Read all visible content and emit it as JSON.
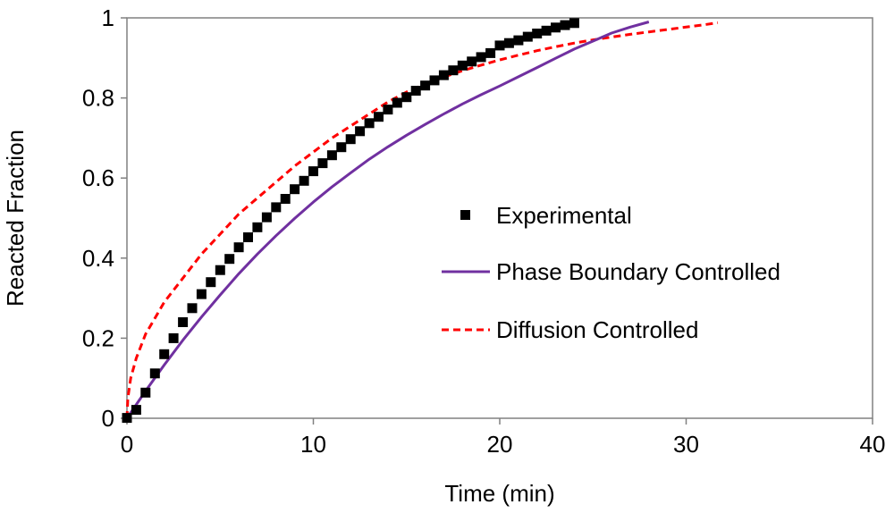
{
  "chart_data": {
    "type": "scatter",
    "title": "",
    "xlabel": "Time (min)",
    "ylabel": "Reacted  Fraction",
    "xlim": [
      0,
      40
    ],
    "ylim": [
      0,
      1
    ],
    "x_ticks": [
      0,
      10,
      20,
      30,
      40
    ],
    "x_tick_labels": [
      "0",
      "10",
      "20",
      "30",
      "40"
    ],
    "y_ticks": [
      0,
      0.2,
      0.4,
      0.6,
      0.8,
      1
    ],
    "y_tick_labels": [
      "0",
      "0.2",
      "0.4",
      "0.6",
      "0.8",
      "1"
    ],
    "grid": false,
    "legend_position": "center-right",
    "series": [
      {
        "name": "Experimental",
        "kind": "markers",
        "marker": "square",
        "color": "#000000",
        "x": [
          0,
          0.5,
          1,
          1.5,
          2,
          2.5,
          3,
          3.5,
          4,
          4.5,
          5,
          5.5,
          6,
          6.5,
          7,
          7.5,
          8,
          8.5,
          9,
          9.5,
          10,
          10.5,
          11,
          11.5,
          12,
          12.5,
          13,
          13.5,
          14,
          14.5,
          15,
          15.5,
          16,
          16.5,
          17,
          17.5,
          18,
          18.5,
          19,
          19.5,
          20,
          20.5,
          21,
          21.5,
          22,
          22.5,
          23,
          23.5,
          24
        ],
        "y": [
          0.001,
          0.021,
          0.064,
          0.112,
          0.16,
          0.2,
          0.24,
          0.275,
          0.31,
          0.34,
          0.37,
          0.398,
          0.427,
          0.452,
          0.477,
          0.502,
          0.527,
          0.548,
          0.572,
          0.593,
          0.617,
          0.637,
          0.657,
          0.677,
          0.697,
          0.717,
          0.737,
          0.753,
          0.771,
          0.788,
          0.802,
          0.818,
          0.831,
          0.844,
          0.857,
          0.869,
          0.881,
          0.891,
          0.902,
          0.912,
          0.931,
          0.937,
          0.944,
          0.953,
          0.961,
          0.968,
          0.976,
          0.982,
          0.987
        ]
      },
      {
        "name": "Phase Boundary Controlled",
        "kind": "line",
        "style": "solid",
        "color": "#7030A0",
        "x": [
          0,
          1,
          2,
          3,
          4,
          5,
          6,
          7,
          8,
          9,
          10,
          11,
          12,
          13,
          14,
          15,
          16,
          17,
          18,
          19,
          20,
          21,
          22,
          23,
          24,
          25,
          26,
          27,
          28
        ],
        "y": [
          0,
          0.068,
          0.133,
          0.195,
          0.253,
          0.308,
          0.361,
          0.41,
          0.456,
          0.499,
          0.54,
          0.578,
          0.613,
          0.647,
          0.678,
          0.707,
          0.734,
          0.76,
          0.785,
          0.808,
          0.83,
          0.853,
          0.876,
          0.899,
          0.922,
          0.942,
          0.962,
          0.977,
          0.99
        ]
      },
      {
        "name": "Diffusion Controlled",
        "kind": "line",
        "style": "dashed",
        "color": "#FF0000",
        "x": [
          0,
          0.05,
          0.2,
          0.5,
          1,
          1.5,
          2,
          3,
          4,
          5,
          6,
          7,
          8,
          9,
          10,
          11,
          12,
          13,
          14,
          15,
          16,
          17,
          18,
          19,
          20,
          21,
          22,
          23,
          24,
          25,
          26,
          27,
          28,
          29,
          30,
          31,
          31.7
        ],
        "y": [
          0,
          0.05,
          0.1,
          0.15,
          0.21,
          0.25,
          0.29,
          0.35,
          0.41,
          0.46,
          0.51,
          0.55,
          0.59,
          0.63,
          0.665,
          0.7,
          0.73,
          0.76,
          0.79,
          0.815,
          0.835,
          0.852,
          0.868,
          0.882,
          0.895,
          0.907,
          0.918,
          0.928,
          0.937,
          0.945,
          0.952,
          0.959,
          0.965,
          0.971,
          0.977,
          0.983,
          0.988
        ]
      }
    ]
  }
}
